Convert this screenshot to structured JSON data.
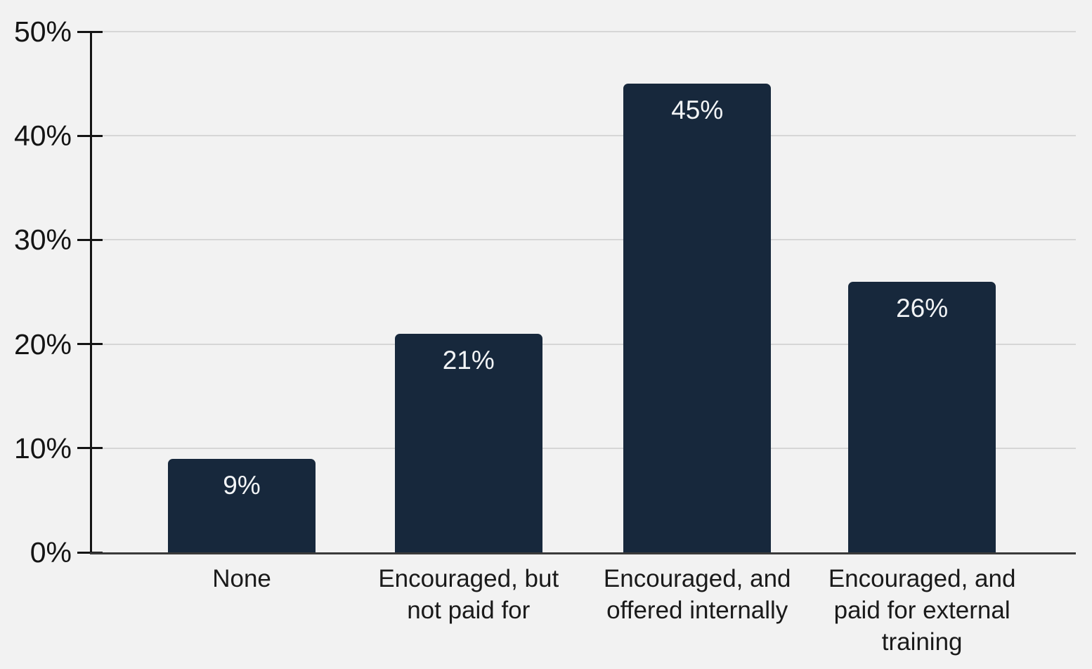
{
  "chart_data": {
    "type": "bar",
    "title": "",
    "xlabel": "",
    "ylabel": "",
    "categories": [
      "None",
      "Encouraged, but not paid for",
      "Encouraged, and offered internally",
      "Encouraged, and paid for external training"
    ],
    "category_lines": [
      [
        "None"
      ],
      [
        "Encouraged, but",
        "not paid for"
      ],
      [
        "Encouraged, and",
        "offered internally"
      ],
      [
        "Encouraged, and",
        "paid for external",
        "training"
      ]
    ],
    "values": [
      9,
      21,
      45,
      26
    ],
    "value_labels": [
      "9%",
      "21%",
      "45%",
      "26%"
    ],
    "y_ticks": [
      0,
      10,
      20,
      30,
      40,
      50
    ],
    "y_tick_labels": [
      "0%",
      "10%",
      "20%",
      "30%",
      "40%",
      "50%"
    ],
    "ylim": [
      0,
      50
    ],
    "grid": "horizontal",
    "legend": "none",
    "colors": {
      "bar": "#17283c",
      "background": "#f2f2f2",
      "gridline": "#d6d6d6",
      "axis": "#141414",
      "baseline": "#3a3a3a",
      "value_text": "#f2f4f6",
      "label_text": "#1a1a1a"
    }
  }
}
